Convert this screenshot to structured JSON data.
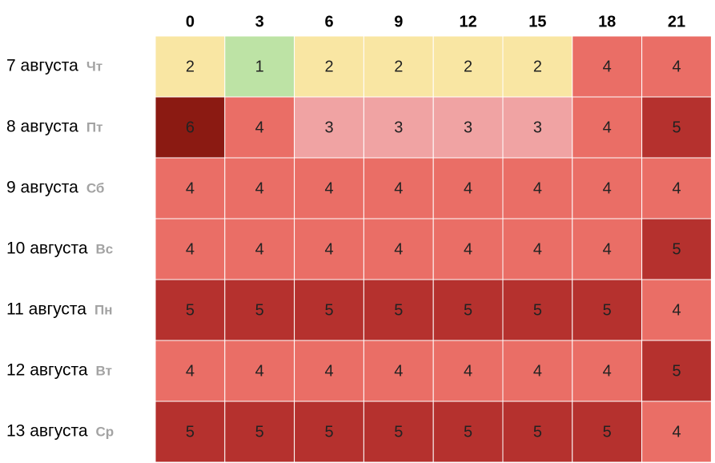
{
  "chart_data": {
    "type": "heatmap",
    "title": "",
    "columns": [
      "0",
      "3",
      "6",
      "9",
      "12",
      "15",
      "18",
      "21"
    ],
    "rows": [
      {
        "date": "7 августа",
        "weekday": "Чт",
        "values": [
          2,
          1,
          2,
          2,
          2,
          2,
          4,
          4
        ]
      },
      {
        "date": "8 августа",
        "weekday": "Пт",
        "values": [
          6,
          4,
          3,
          3,
          3,
          3,
          4,
          5
        ]
      },
      {
        "date": "9 августа",
        "weekday": "Сб",
        "values": [
          4,
          4,
          4,
          4,
          4,
          4,
          4,
          4
        ]
      },
      {
        "date": "10 августа",
        "weekday": "Вс",
        "values": [
          4,
          4,
          4,
          4,
          4,
          4,
          4,
          5
        ]
      },
      {
        "date": "11 августа",
        "weekday": "Пн",
        "values": [
          5,
          5,
          5,
          5,
          5,
          5,
          5,
          4
        ]
      },
      {
        "date": "12 августа",
        "weekday": "Вт",
        "values": [
          4,
          4,
          4,
          4,
          4,
          4,
          4,
          5
        ]
      },
      {
        "date": "13 августа",
        "weekday": "Ср",
        "values": [
          5,
          5,
          5,
          5,
          5,
          5,
          5,
          4
        ]
      }
    ],
    "color_scale": {
      "1": "#bde3a5",
      "2": "#f9e6a3",
      "3": "#f0a3a3",
      "4": "#ea6e66",
      "5": "#b5312e",
      "6": "#8b1a12"
    },
    "text_color": "#222222"
  }
}
